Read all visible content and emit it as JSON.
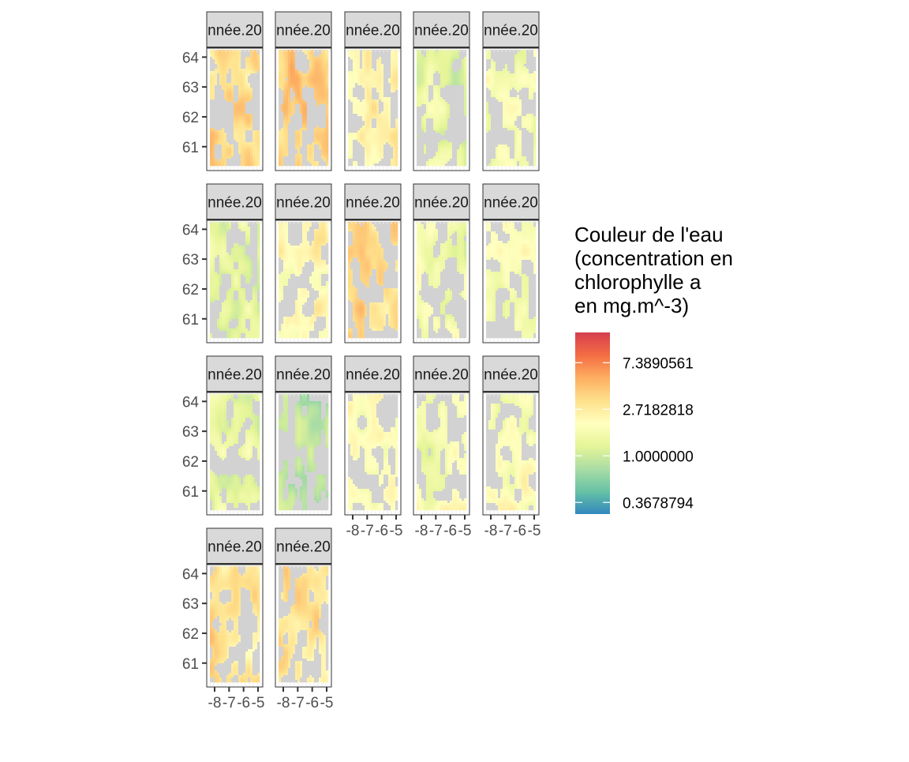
{
  "chart_data": {
    "type": "heatmap",
    "facet_label": "nnée.20",
    "facet_count": 17,
    "facet_columns": 5,
    "y_ticks": [
      "64",
      "63",
      "62",
      "61"
    ],
    "y_tick_values": [
      64,
      63,
      62,
      61
    ],
    "ylim": [
      60.2,
      64.3
    ],
    "x_ticks": [
      "-8",
      "-7",
      "-6",
      "-5"
    ],
    "x_tick_values": [
      -8,
      -7,
      -6,
      -5
    ],
    "xlim": [
      -8.3,
      -4.8
    ],
    "missing_color": "#d2d2d2",
    "panels": [
      {
        "tone": 0.62
      },
      {
        "tone": 0.66
      },
      {
        "tone": 0.55
      },
      {
        "tone": 0.38
      },
      {
        "tone": 0.44
      },
      {
        "tone": 0.36
      },
      {
        "tone": 0.52
      },
      {
        "tone": 0.62
      },
      {
        "tone": 0.42
      },
      {
        "tone": 0.46
      },
      {
        "tone": 0.38
      },
      {
        "tone": 0.3
      },
      {
        "tone": 0.5
      },
      {
        "tone": 0.44
      },
      {
        "tone": 0.48
      },
      {
        "tone": 0.6
      },
      {
        "tone": 0.6
      }
    ],
    "legend": {
      "title_lines": [
        "Couleur de l'eau",
        "(concentration en",
        "chlorophylle a",
        "en mg.m^-3)"
      ],
      "labels": [
        "7.3890561",
        "2.7182818",
        "1.0000000",
        "0.3678794"
      ],
      "label_values": [
        2,
        1,
        0,
        -1
      ],
      "range": [
        -1.25,
        2.65
      ],
      "colors": [
        "#3288bd",
        "#66c2a5",
        "#abdda4",
        "#e6f598",
        "#ffffbf",
        "#fee08b",
        "#fdae61",
        "#f46d43",
        "#d53e4f"
      ]
    }
  }
}
